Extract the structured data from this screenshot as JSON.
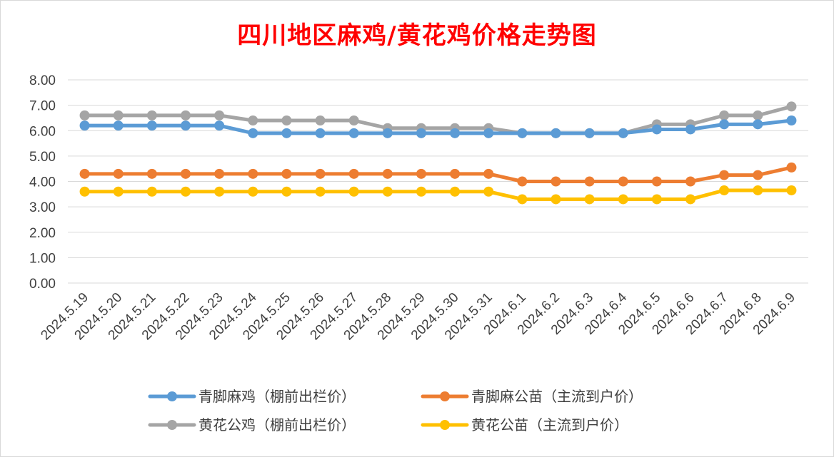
{
  "chart_data": {
    "type": "line",
    "title": "四川地区麻鸡/黄花鸡价格走势图",
    "categories": [
      "2024.5.19",
      "2024.5.20",
      "2024.5.21",
      "2024.5.22",
      "2024.5.23",
      "2024.5.24",
      "2024.5.25",
      "2024.5.26",
      "2024.5.27",
      "2024.5.28",
      "2024.5.29",
      "2024.5.30",
      "2024.5.31",
      "2024.6.1",
      "2024.6.2",
      "2024.6.3",
      "2024.6.4",
      "2024.6.5",
      "2024.6.6",
      "2024.6.7",
      "2024.6.8",
      "2024.6.9"
    ],
    "ylim": [
      0,
      8
    ],
    "yticks": [
      "0.00",
      "1.00",
      "2.00",
      "3.00",
      "4.00",
      "5.00",
      "6.00",
      "7.00",
      "8.00"
    ],
    "grid": true,
    "legend_position": "bottom",
    "series": [
      {
        "name": "青脚麻鸡（棚前出栏价）",
        "color": "#5b9bd5",
        "values": [
          6.2,
          6.2,
          6.2,
          6.2,
          6.2,
          5.9,
          5.9,
          5.9,
          5.9,
          5.9,
          5.9,
          5.9,
          5.9,
          5.9,
          5.9,
          5.9,
          5.9,
          6.05,
          6.05,
          6.25,
          6.25,
          6.4
        ]
      },
      {
        "name": "青脚麻公苗（主流到户价）",
        "color": "#ed7d31",
        "values": [
          4.3,
          4.3,
          4.3,
          4.3,
          4.3,
          4.3,
          4.3,
          4.3,
          4.3,
          4.3,
          4.3,
          4.3,
          4.3,
          4.0,
          4.0,
          4.0,
          4.0,
          4.0,
          4.0,
          4.25,
          4.25,
          4.55
        ]
      },
      {
        "name": "黄花公鸡（棚前出栏价）",
        "color": "#a5a5a5",
        "values": [
          6.6,
          6.6,
          6.6,
          6.6,
          6.6,
          6.4,
          6.4,
          6.4,
          6.4,
          6.1,
          6.1,
          6.1,
          6.1,
          5.9,
          5.9,
          5.9,
          5.9,
          6.25,
          6.25,
          6.6,
          6.6,
          6.95
        ]
      },
      {
        "name": "黄花公苗（主流到户价）",
        "color": "#ffc000",
        "values": [
          3.6,
          3.6,
          3.6,
          3.6,
          3.6,
          3.6,
          3.6,
          3.6,
          3.6,
          3.6,
          3.6,
          3.6,
          3.6,
          3.3,
          3.3,
          3.3,
          3.3,
          3.3,
          3.3,
          3.65,
          3.65,
          3.65
        ]
      }
    ]
  }
}
